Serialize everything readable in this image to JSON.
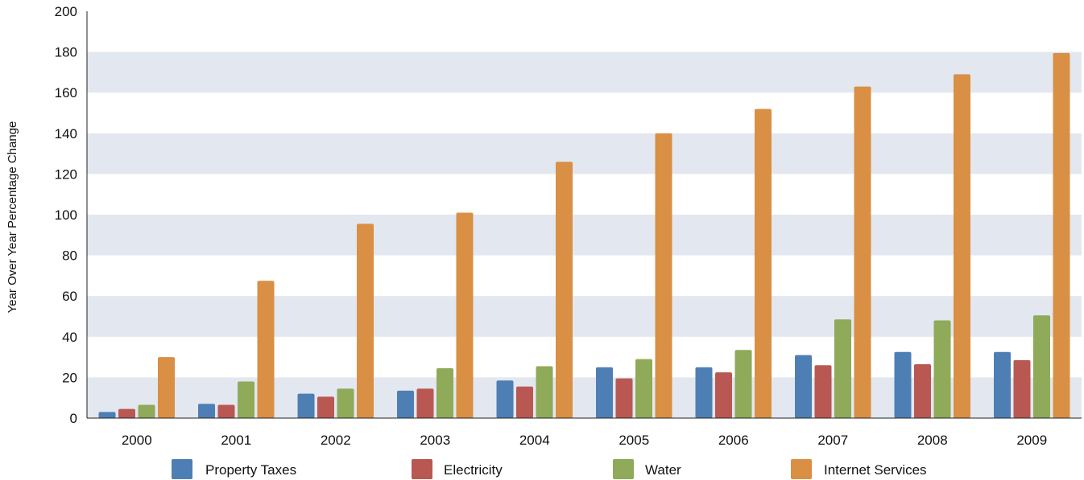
{
  "chart_data": {
    "type": "bar",
    "title": "",
    "xlabel": "",
    "ylabel": "Year Over Year Percentage Change",
    "ylim": [
      0,
      200
    ],
    "yticks": [
      0,
      20,
      40,
      60,
      80,
      100,
      120,
      140,
      160,
      180,
      200
    ],
    "categories": [
      "2000",
      "2001",
      "2002",
      "2003",
      "2004",
      "2005",
      "2006",
      "2007",
      "2008",
      "2009"
    ],
    "grid": "alternating horizontal bands",
    "legend_position": "bottom",
    "series": [
      {
        "name": "Property Taxes",
        "color": "#4e7fb4",
        "values": [
          3,
          7,
          12,
          13.5,
          18.5,
          25,
          25,
          31,
          32.5,
          32.5
        ]
      },
      {
        "name": "Electricity",
        "color": "#b95852",
        "values": [
          4.5,
          6.5,
          10.5,
          14.5,
          15.5,
          19.5,
          22.5,
          26,
          26.5,
          28.5
        ]
      },
      {
        "name": "Water",
        "color": "#8faa58",
        "values": [
          6.5,
          18,
          14.5,
          24.5,
          25.5,
          29,
          33.5,
          48.5,
          48,
          50.5
        ]
      },
      {
        "name": "Internet Services",
        "color": "#d98f44",
        "values": [
          30,
          67.5,
          95.5,
          101,
          126,
          140,
          152,
          163,
          169,
          179.5
        ]
      }
    ],
    "band_color": "#e3e7ef"
  }
}
